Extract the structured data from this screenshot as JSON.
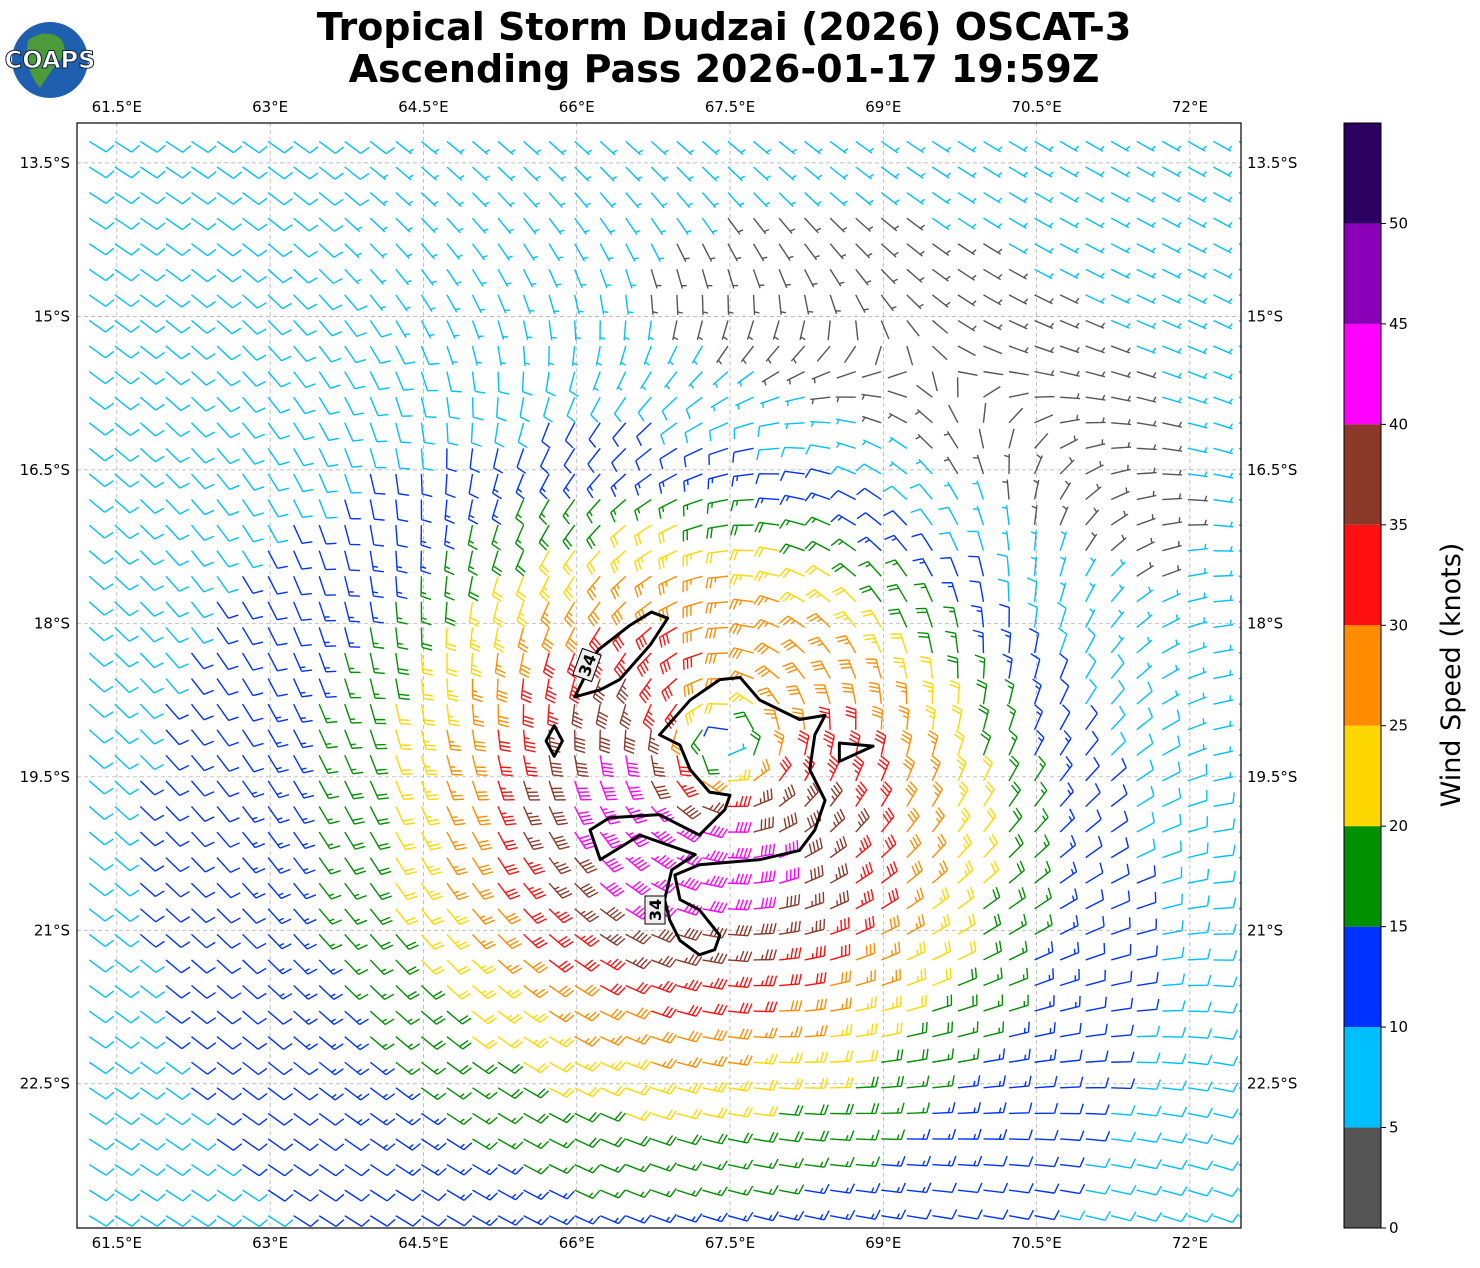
{
  "map": {
    "logo": "COAPS",
    "title": "Tropical Storm Dudzai (2026) OSCAT-3",
    "subtitle": "Ascending Pass 2026-01-17 19:59Z",
    "xlim": [
      61.11,
      72.5
    ],
    "ylim": [
      -23.91,
      -13.11
    ],
    "xticks": [
      {
        "value": 61.5,
        "label": "61.5°E"
      },
      {
        "value": 63,
        "label": "63°E"
      },
      {
        "value": 64.5,
        "label": "64.5°E"
      },
      {
        "value": 66,
        "label": "66°E"
      },
      {
        "value": 67.5,
        "label": "67.5°E"
      },
      {
        "value": 69,
        "label": "69°E"
      },
      {
        "value": 70.5,
        "label": "70.5°E"
      },
      {
        "value": 72,
        "label": "72°E"
      }
    ],
    "yticks": [
      {
        "value": -13.5,
        "label": "13.5°S"
      },
      {
        "value": -15,
        "label": "15°S"
      },
      {
        "value": -16.5,
        "label": "16.5°S"
      },
      {
        "value": -18,
        "label": "18°S"
      },
      {
        "value": -19.5,
        "label": "19.5°S"
      },
      {
        "value": -21,
        "label": "21°S"
      },
      {
        "value": -22.5,
        "label": "22.5°S"
      }
    ],
    "grid": true,
    "colorbar": {
      "label": "Wind Speed (knots)",
      "clim": [
        0,
        55
      ],
      "levels": [
        0,
        5,
        10,
        15,
        20,
        25,
        30,
        35,
        40,
        45,
        50,
        55
      ],
      "colors": [
        "#555555",
        "#00bfff",
        "#0033ff",
        "#009000",
        "#ffd700",
        "#ff8c00",
        "#ff1010",
        "#8b3a2a",
        "#ff00ff",
        "#8a00b8",
        "#2a0060"
      ],
      "ticks": [
        0,
        5,
        10,
        15,
        20,
        25,
        30,
        35,
        40,
        45,
        50
      ]
    },
    "contour": {
      "level": 34,
      "pieces": [
        [
          [
            65.98,
            -18.72
          ],
          [
            66.21,
            -18.26
          ],
          [
            66.52,
            -18.02
          ],
          [
            66.73,
            -17.89
          ],
          [
            66.89,
            -17.95
          ],
          [
            66.72,
            -18.21
          ],
          [
            66.42,
            -18.55
          ],
          [
            66.23,
            -18.65
          ]
        ],
        [
          [
            66.81,
            -19.09
          ],
          [
            67.11,
            -18.75
          ],
          [
            67.4,
            -18.55
          ],
          [
            67.6,
            -18.53
          ],
          [
            67.79,
            -18.75
          ],
          [
            68.18,
            -18.94
          ],
          [
            68.43,
            -18.9
          ],
          [
            68.33,
            -19.09
          ],
          [
            68.28,
            -19.43
          ],
          [
            68.43,
            -19.73
          ],
          [
            68.33,
            -20.02
          ],
          [
            68.18,
            -20.22
          ],
          [
            67.79,
            -20.31
          ],
          [
            67.2,
            -20.36
          ],
          [
            66.96,
            -20.46
          ],
          [
            67.01,
            -20.7
          ],
          [
            67.2,
            -20.8
          ],
          [
            67.4,
            -21.05
          ],
          [
            67.35,
            -21.19
          ],
          [
            67.2,
            -21.24
          ],
          [
            67.01,
            -21.1
          ],
          [
            66.91,
            -20.9
          ],
          [
            66.86,
            -20.7
          ],
          [
            66.93,
            -20.41
          ],
          [
            67.16,
            -20.26
          ],
          [
            66.62,
            -20.07
          ],
          [
            66.23,
            -20.31
          ],
          [
            66.13,
            -20.02
          ],
          [
            66.32,
            -19.9
          ],
          [
            66.81,
            -19.87
          ],
          [
            67.2,
            -20.07
          ],
          [
            67.45,
            -19.82
          ],
          [
            67.5,
            -19.68
          ],
          [
            67.3,
            -19.65
          ],
          [
            67.11,
            -19.43
          ],
          [
            67.01,
            -19.19
          ]
        ],
        [
          [
            65.78,
            -19.0
          ],
          [
            65.86,
            -19.15
          ],
          [
            65.78,
            -19.3
          ],
          [
            65.7,
            -19.15
          ]
        ],
        [
          [
            68.57,
            -19.17
          ],
          [
            68.9,
            -19.2
          ],
          [
            68.57,
            -19.35
          ]
        ]
      ]
    }
  }
}
